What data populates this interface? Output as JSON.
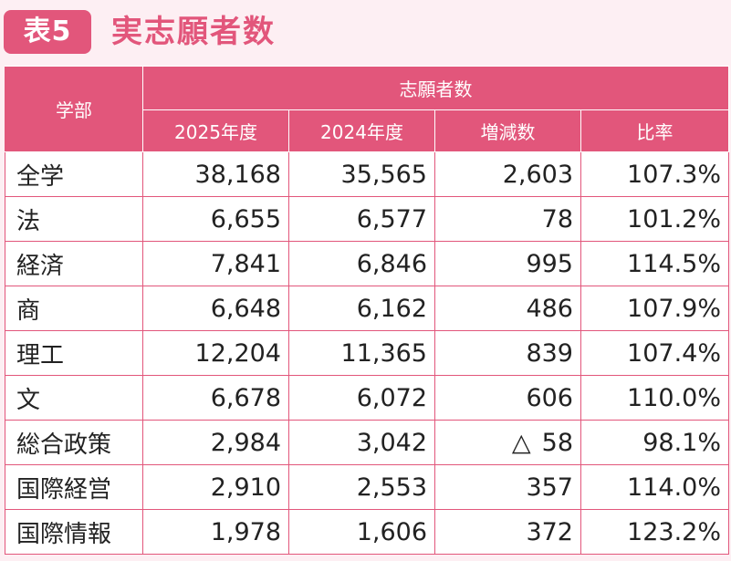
{
  "header": {
    "badge": "表5",
    "title": "実志願者数"
  },
  "table": {
    "dept_header": "学部",
    "group_header": "志願者数",
    "columns": [
      "2025年度",
      "2024年度",
      "増減数",
      "比率"
    ],
    "rows": [
      {
        "name": "全学",
        "y2025": "38,168",
        "y2024": "35,565",
        "diff_mark": "",
        "diff": "2,603",
        "ratio": "107.3%"
      },
      {
        "name": "法",
        "y2025": "6,655",
        "y2024": "6,577",
        "diff_mark": "",
        "diff": "78",
        "ratio": "101.2%"
      },
      {
        "name": "経済",
        "y2025": "7,841",
        "y2024": "6,846",
        "diff_mark": "",
        "diff": "995",
        "ratio": "114.5%"
      },
      {
        "name": "商",
        "y2025": "6,648",
        "y2024": "6,162",
        "diff_mark": "",
        "diff": "486",
        "ratio": "107.9%"
      },
      {
        "name": "理工",
        "y2025": "12,204",
        "y2024": "11,365",
        "diff_mark": "",
        "diff": "839",
        "ratio": "107.4%"
      },
      {
        "name": "文",
        "y2025": "6,678",
        "y2024": "6,072",
        "diff_mark": "",
        "diff": "606",
        "ratio": "110.0%"
      },
      {
        "name": "総合政策",
        "y2025": "2,984",
        "y2024": "3,042",
        "diff_mark": "△",
        "diff": "58",
        "ratio": "98.1%"
      },
      {
        "name": "国際経営",
        "y2025": "2,910",
        "y2024": "2,553",
        "diff_mark": "",
        "diff": "357",
        "ratio": "114.0%"
      },
      {
        "name": "国際情報",
        "y2025": "1,978",
        "y2024": "1,606",
        "diff_mark": "",
        "diff": "372",
        "ratio": "123.2%"
      }
    ]
  }
}
